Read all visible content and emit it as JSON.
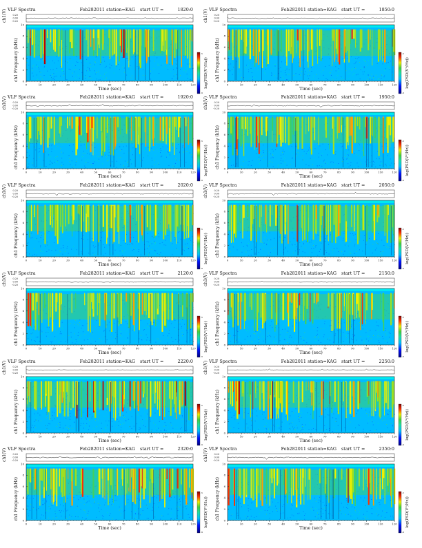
{
  "labels": {
    "title": "VLF Spectra",
    "date": "Feb282011",
    "station": "station=KAG",
    "start_prefix": "start  UT =",
    "ch_ylabel": "ch1(V)",
    "ch_ticks": [
      "0.20",
      "0.00",
      "-0.20"
    ],
    "spec_ylabel": "ch1 Frequency (kHz)",
    "freq_ticks": [
      "0",
      "2",
      "4",
      "6",
      "8",
      "10"
    ],
    "xlabel": "Time (sec)",
    "colorbar_label": "log(PSD(V²/Hz))",
    "colorbar_ticks": [
      "-9",
      "-5"
    ]
  },
  "chart_data": [
    {
      "type": "heatmap",
      "panel": "VLF Spectra Feb282011 station=KAG start UT =1820:0",
      "start_ut": "1820:0",
      "x_range": [
        0,
        120
      ],
      "y_range": [
        0,
        10
      ],
      "color_range": [
        -9,
        -5
      ],
      "x_ticks": [
        0,
        10,
        20,
        30,
        40,
        50,
        60,
        70,
        80,
        90,
        100,
        110,
        120
      ],
      "activity": 0.8
    },
    {
      "type": "heatmap",
      "panel": "VLF Spectra Feb282011 station=KAG start UT =1850:0",
      "start_ut": "1850:0",
      "x_range": [
        0,
        120
      ],
      "y_range": [
        0,
        10
      ],
      "color_range": [
        -9,
        -5
      ],
      "x_ticks": [
        0,
        10,
        20,
        30,
        40,
        50,
        60,
        70,
        80,
        90,
        100,
        110,
        120
      ],
      "activity": 0.75
    },
    {
      "type": "heatmap",
      "panel": "VLF Spectra Feb282011 station=KAG start UT =1920:0",
      "start_ut": "1920:0",
      "x_range": [
        0,
        120
      ],
      "y_range": [
        0,
        10
      ],
      "color_range": [
        -9,
        -5
      ],
      "x_ticks": [
        0,
        10,
        20,
        30,
        40,
        50,
        60,
        70,
        80,
        90,
        100,
        110,
        120
      ],
      "activity": 0.6
    },
    {
      "type": "heatmap",
      "panel": "VLF Spectra Feb282011 station=KAG start UT =1950:0",
      "start_ut": "1950:0",
      "x_range": [
        0,
        120
      ],
      "y_range": [
        0,
        10
      ],
      "color_range": [
        -9,
        -5
      ],
      "x_ticks": [
        0,
        10,
        20,
        30,
        40,
        50,
        60,
        70,
        80,
        90,
        100,
        110,
        120
      ],
      "activity": 0.6
    },
    {
      "type": "heatmap",
      "panel": "VLF Spectra Feb282011 station=KAG start UT =2020:0",
      "start_ut": "2020:0",
      "x_range": [
        0,
        120
      ],
      "y_range": [
        0,
        10
      ],
      "color_range": [
        -9,
        -5
      ],
      "x_ticks": [
        0,
        10,
        20,
        30,
        40,
        50,
        60,
        70,
        80,
        90,
        100,
        110,
        120
      ],
      "activity": 0.55
    },
    {
      "type": "heatmap",
      "panel": "VLF Spectra Feb282011 station=KAG start UT =2050:0",
      "start_ut": "2050:0",
      "x_range": [
        0,
        120
      ],
      "y_range": [
        0,
        10
      ],
      "color_range": [
        -9,
        -5
      ],
      "x_ticks": [
        0,
        10,
        20,
        30,
        40,
        50,
        60,
        70,
        80,
        90,
        100,
        110,
        120
      ],
      "activity": 0.55
    },
    {
      "type": "heatmap",
      "panel": "VLF Spectra Feb282011 station=KAG start UT =2120:0",
      "start_ut": "2120:0",
      "x_range": [
        0,
        120
      ],
      "y_range": [
        0,
        10
      ],
      "color_range": [
        -9,
        -5
      ],
      "x_ticks": [
        0,
        10,
        20,
        30,
        40,
        50,
        60,
        70,
        80,
        90,
        100,
        110,
        120
      ],
      "activity": 0.5
    },
    {
      "type": "heatmap",
      "panel": "VLF Spectra Feb282011 station=KAG start UT =2150:0",
      "start_ut": "2150:0",
      "x_range": [
        0,
        120
      ],
      "y_range": [
        0,
        10
      ],
      "color_range": [
        -9,
        -5
      ],
      "x_ticks": [
        0,
        10,
        20,
        30,
        40,
        50,
        60,
        70,
        80,
        90,
        100,
        110,
        120
      ],
      "activity": 0.55
    },
    {
      "type": "heatmap",
      "panel": "VLF Spectra Feb282011 station=KAG start UT =2220:0",
      "start_ut": "2220:0",
      "x_range": [
        0,
        120
      ],
      "y_range": [
        0,
        10
      ],
      "color_range": [
        -9,
        -5
      ],
      "x_ticks": [
        0,
        10,
        20,
        30,
        40,
        50,
        60,
        70,
        80,
        90,
        100,
        110,
        120
      ],
      "activity": 0.8
    },
    {
      "type": "heatmap",
      "panel": "VLF Spectra Feb282011 station=KAG start UT =2250:0",
      "start_ut": "2250:0",
      "x_range": [
        0,
        120
      ],
      "y_range": [
        0,
        10
      ],
      "color_range": [
        -9,
        -5
      ],
      "x_ticks": [
        0,
        10,
        20,
        30,
        40,
        50,
        60,
        70,
        80,
        90,
        100,
        110,
        120
      ],
      "activity": 0.8
    },
    {
      "type": "heatmap",
      "panel": "VLF Spectra Feb282011 station=KAG start UT =2320:0",
      "start_ut": "2320:0",
      "x_range": [
        0,
        120
      ],
      "y_range": [
        0,
        10
      ],
      "color_range": [
        -9,
        -5
      ],
      "x_ticks": [
        0,
        10,
        20,
        30,
        40,
        50,
        60,
        70,
        80,
        90,
        100,
        110,
        120
      ],
      "activity": 0.7
    },
    {
      "type": "heatmap",
      "panel": "VLF Spectra Feb282011 station=KAG start UT =2350:0",
      "start_ut": "2350:0",
      "x_range": [
        0,
        120
      ],
      "y_range": [
        0,
        10
      ],
      "color_range": [
        -9,
        -5
      ],
      "x_ticks": [
        0,
        10,
        20,
        30,
        40,
        50,
        60,
        70,
        80,
        90,
        100,
        110,
        120
      ],
      "activity": 0.65
    }
  ]
}
